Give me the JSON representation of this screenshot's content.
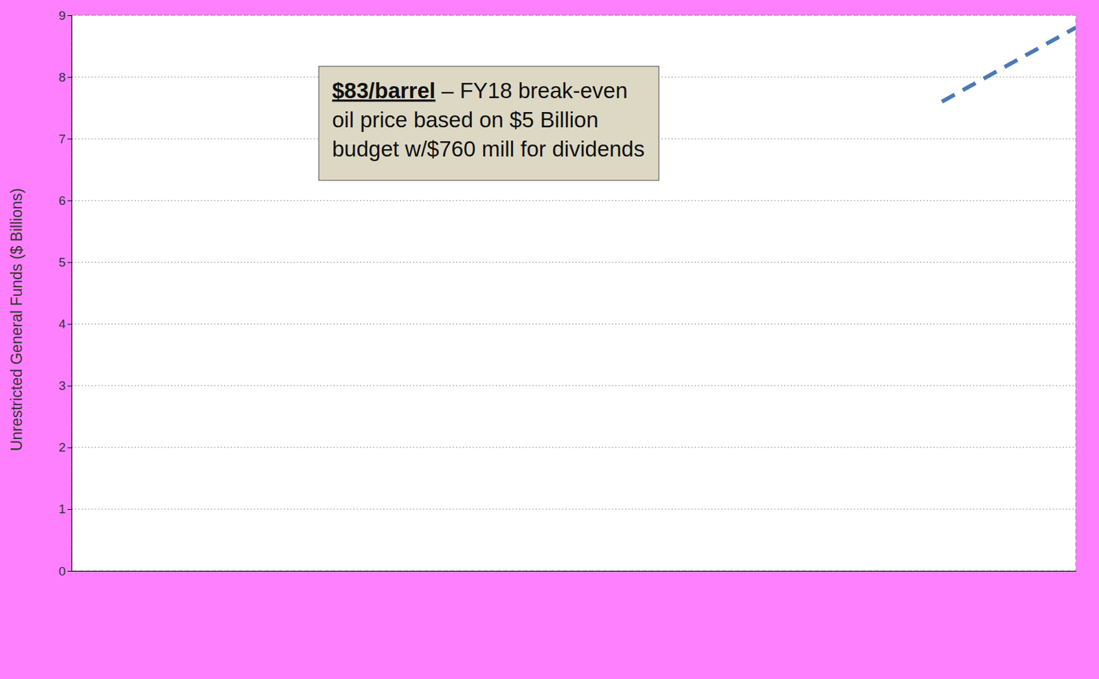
{
  "chart_data": {
    "type": "line",
    "y_label": "Unrestricted General Funds ($ Billions)",
    "categories": [
      null,
      null,
      null,
      null,
      null,
      null,
      null,
      null,
      null,
      null,
      null,
      null,
      null,
      null,
      null,
      null
    ],
    "series": [
      {
        "color": "#4a7ab5",
        "line_style": "dashed",
        "values": [
          null,
          null,
          null,
          null,
          null,
          null,
          null,
          null,
          null,
          null,
          null,
          null,
          null,
          7.6,
          8.2,
          8.8
        ]
      }
    ],
    "ylim": [
      0,
      9
    ],
    "yticks": [
      0,
      1,
      2,
      3,
      4,
      5,
      6,
      7,
      8,
      9
    ],
    "grid": true,
    "annotations": [
      {
        "label": "$83/barrel",
        "text": "– FY18 break-even oil price based on $5 Billion budget w/$760 mill for dividends"
      }
    ]
  }
}
